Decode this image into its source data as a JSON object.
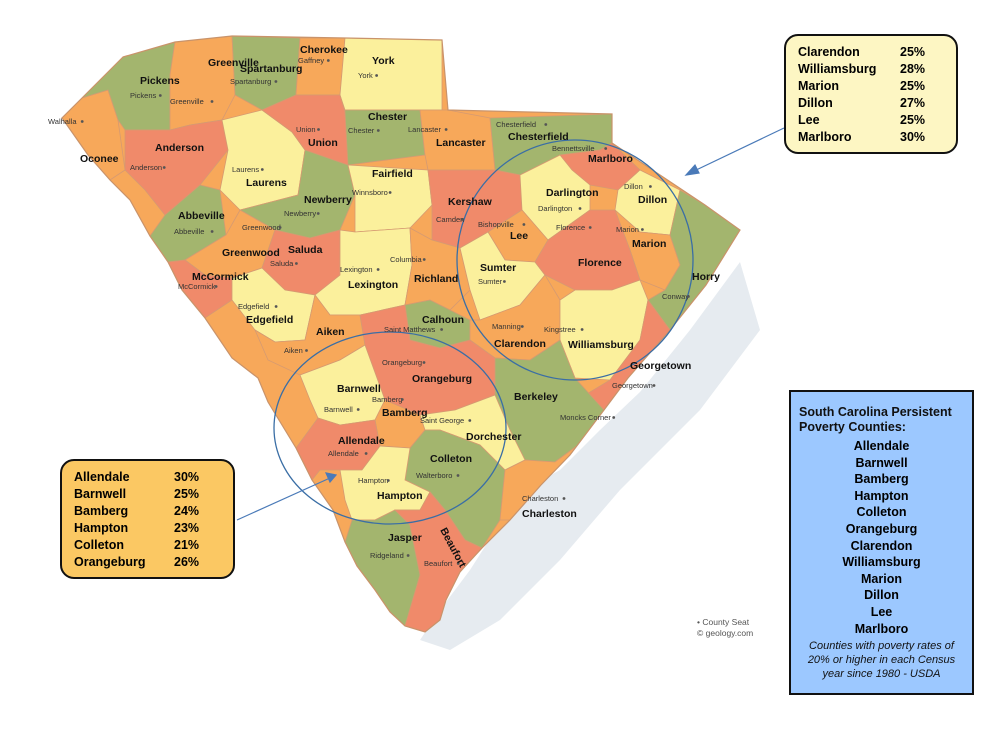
{
  "colors": {
    "orange": "#f7a85a",
    "salmon": "#f08a6a",
    "yellow": "#fbf09c",
    "green": "#a3b56e",
    "water": "#e6ebf0",
    "callout_top_bg": "#fdf6c3",
    "callout_bottom_bg": "#fbc863",
    "info_box_bg": "#9cc8ff",
    "circle_stroke": "#3a6ea5"
  },
  "counties": [
    {
      "name": "Oconee",
      "seat": "Walhalla",
      "color": "orange"
    },
    {
      "name": "Pickens",
      "seat": "Pickens",
      "color": "green"
    },
    {
      "name": "Greenville",
      "seat": "Greenville",
      "color": "orange"
    },
    {
      "name": "Spartanburg",
      "seat": "Spartanburg",
      "color": "green"
    },
    {
      "name": "Cherokee",
      "seat": "Gaffney",
      "color": "orange"
    },
    {
      "name": "York",
      "seat": "York",
      "color": "yellow"
    },
    {
      "name": "Anderson",
      "seat": "Anderson",
      "color": "salmon"
    },
    {
      "name": "Laurens",
      "seat": "Laurens",
      "color": "yellow"
    },
    {
      "name": "Union",
      "seat": "Union",
      "color": "salmon"
    },
    {
      "name": "Chester",
      "seat": "Chester",
      "color": "green"
    },
    {
      "name": "Lancaster",
      "seat": "Lancaster",
      "color": "orange"
    },
    {
      "name": "Chesterfield",
      "seat": "Chesterfield",
      "color": "green"
    },
    {
      "name": "Marlboro",
      "seat": "Bennettsville",
      "color": "salmon"
    },
    {
      "name": "Abbeville",
      "seat": "Abbeville",
      "color": "green"
    },
    {
      "name": "Newberry",
      "seat": "Newberry",
      "color": "green"
    },
    {
      "name": "Fairfield",
      "seat": "Winnsboro",
      "color": "yellow"
    },
    {
      "name": "Kershaw",
      "seat": "Camden",
      "color": "salmon"
    },
    {
      "name": "Darlington",
      "seat": "Darlington",
      "color": "yellow"
    },
    {
      "name": "Dillon",
      "seat": "Dillon",
      "color": "yellow"
    },
    {
      "name": "Greenwood",
      "seat": "Greenwood",
      "color": "orange"
    },
    {
      "name": "Saluda",
      "seat": "Saluda",
      "color": "salmon"
    },
    {
      "name": "Lee",
      "seat": "Bishopville",
      "color": "orange"
    },
    {
      "name": "Marion",
      "seat": "Marion",
      "color": "orange"
    },
    {
      "name": "McCormick",
      "seat": "McCormick",
      "color": "salmon"
    },
    {
      "name": "Lexington",
      "seat": "Lexington",
      "color": "yellow"
    },
    {
      "name": "Richland",
      "seat": "Columbia",
      "color": "orange"
    },
    {
      "name": "Sumter",
      "seat": "Sumter",
      "color": "yellow"
    },
    {
      "name": "Florence",
      "seat": "Florence",
      "color": "salmon"
    },
    {
      "name": "Horry",
      "seat": "Conway",
      "color": "green"
    },
    {
      "name": "Edgefield",
      "seat": "Edgefield",
      "color": "yellow"
    },
    {
      "name": "Aiken",
      "seat": "Aiken",
      "color": "orange"
    },
    {
      "name": "Calhoun",
      "seat": "Saint Matthews",
      "color": "green"
    },
    {
      "name": "Clarendon",
      "seat": "Manning",
      "color": "orange"
    },
    {
      "name": "Williamsburg",
      "seat": "Kingstree",
      "color": "yellow"
    },
    {
      "name": "Orangeburg",
      "seat": "Orangeburg",
      "color": "salmon"
    },
    {
      "name": "Georgetown",
      "seat": "Georgetown",
      "color": "salmon"
    },
    {
      "name": "Barnwell",
      "seat": "Barnwell",
      "color": "yellow"
    },
    {
      "name": "Bamberg",
      "seat": "Bamberg",
      "color": "orange"
    },
    {
      "name": "Berkeley",
      "seat": "Moncks Corner",
      "color": "green"
    },
    {
      "name": "Dorchester",
      "seat": "Saint George",
      "color": "yellow"
    },
    {
      "name": "Allendale",
      "seat": "Allendale",
      "color": "salmon"
    },
    {
      "name": "Colleton",
      "seat": "Walterboro",
      "color": "green"
    },
    {
      "name": "Hampton",
      "seat": "Hampton",
      "color": "yellow"
    },
    {
      "name": "Charleston",
      "seat": "Charleston",
      "color": "orange"
    },
    {
      "name": "Jasper",
      "seat": "Ridgeland",
      "color": "green"
    },
    {
      "name": "Beaufort",
      "seat": "Beaufort",
      "color": "salmon"
    }
  ],
  "callout_top": {
    "rows": [
      {
        "county": "Clarendon",
        "rate": "25%"
      },
      {
        "county": "Williamsburg",
        "rate": "28%"
      },
      {
        "county": "Marion",
        "rate": "25%"
      },
      {
        "county": "Dillon",
        "rate": "27%"
      },
      {
        "county": "Lee",
        "rate": "25%"
      },
      {
        "county": "Marlboro",
        "rate": "30%"
      }
    ]
  },
  "callout_bottom": {
    "rows": [
      {
        "county": "Allendale",
        "rate": "30%"
      },
      {
        "county": "Barnwell",
        "rate": "25%"
      },
      {
        "county": "Bamberg",
        "rate": "24%"
      },
      {
        "county": "Hampton",
        "rate": "23%"
      },
      {
        "county": "Colleton",
        "rate": "21%"
      },
      {
        "county": "Orangeburg",
        "rate": "26%"
      }
    ]
  },
  "poverty_box": {
    "title": "South Carolina Persistent Poverty Counties:",
    "counties": [
      "Allendale",
      "Barnwell",
      "Bamberg",
      "Hampton",
      "Colleton",
      "Orangeburg",
      "Clarendon",
      "Williamsburg",
      "Marion",
      "Dillon",
      "Lee",
      "Marlboro"
    ],
    "note": "Counties with poverty rates of 20% or higher in each Census year since 1980 - USDA"
  },
  "legend": {
    "seat_label": "County Seat",
    "credit": "geology.com"
  }
}
